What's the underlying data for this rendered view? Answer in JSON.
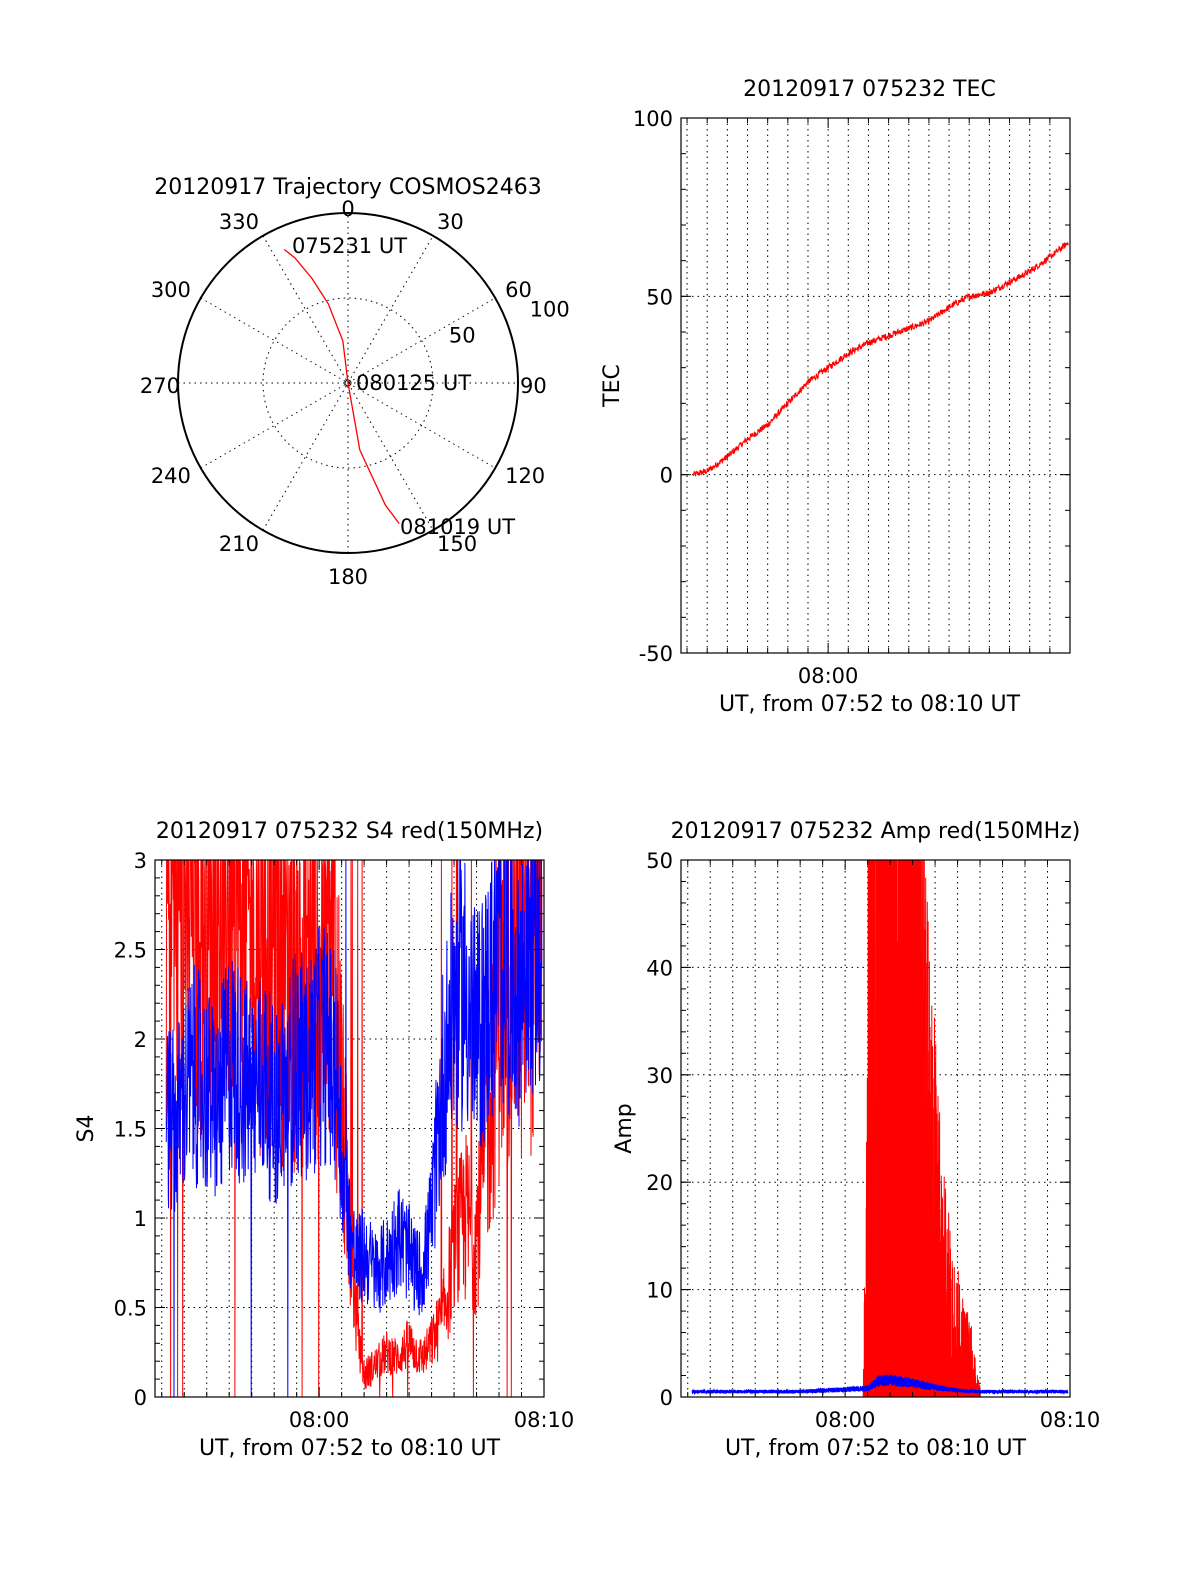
{
  "colors": {
    "red": "#ff0000",
    "blue": "#0000ff",
    "axis": "#000000"
  },
  "chart_data": [
    {
      "type": "polar",
      "title": "20120917 Trajectory COSMOS2463",
      "angle_labels": [
        "0",
        "30",
        "60",
        "90",
        "120",
        "150",
        "180",
        "210",
        "240",
        "270",
        "300",
        "330"
      ],
      "radius_labels": [
        "50",
        "100"
      ],
      "radius_label_values": [
        50,
        100
      ],
      "angle_label_values": [
        0,
        30,
        60,
        90,
        120,
        150,
        180,
        210,
        240,
        270,
        300,
        330
      ],
      "radius_max": 100,
      "series": [
        {
          "color": "red",
          "points_azimuth_deg": [
            334.5,
            337,
            341,
            346,
            353,
            0,
            170,
            163,
            160
          ],
          "points_radius": [
            87,
            80,
            65,
            48,
            25,
            0,
            40,
            75,
            88
          ]
        }
      ],
      "annotations": [
        {
          "text": "075231 UT",
          "azimuth": 355,
          "radius": 82
        },
        {
          "text": "080125 UT",
          "azimuth": 90,
          "radius": 2
        },
        {
          "text": "081019 UT",
          "azimuth": 154,
          "radius": 95
        }
      ]
    },
    {
      "type": "line",
      "title": "20120917 075232 TEC",
      "xlabel": "UT, from 07:52 to 08:10 UT",
      "ylabel": "TEC",
      "xlim": [
        472.7,
        492
      ],
      "ylim": [
        -50,
        100
      ],
      "xticks": [
        480
      ],
      "xtick_labels": [
        "08:00"
      ],
      "yticks": [
        -50,
        0,
        50,
        100
      ],
      "ytick_labels": [
        "-50",
        "0",
        "50",
        "100"
      ],
      "series": [
        {
          "color": "red",
          "x": [
            473.3,
            474,
            475,
            476,
            477,
            478,
            479,
            480,
            481,
            482,
            483,
            484,
            485,
            486,
            487,
            488,
            489,
            490,
            491,
            491.9
          ],
          "y": [
            0,
            1,
            5,
            10,
            14,
            20,
            26,
            30,
            34,
            37,
            39,
            41,
            43,
            47,
            50,
            51,
            54,
            57,
            61,
            65
          ]
        }
      ]
    },
    {
      "type": "line",
      "title": "20120917 075232 S4 red(150MHz)",
      "xlabel": "UT, from 07:52 to 08:10 UT",
      "ylabel": "S4",
      "xlim": [
        472.7,
        490
      ],
      "ylim": [
        0,
        3
      ],
      "xticks": [
        480,
        490
      ],
      "xtick_labels": [
        "08:00",
        "08:10"
      ],
      "yticks": [
        0,
        0.5,
        1,
        1.5,
        2,
        2.5,
        3
      ],
      "ytick_labels": [
        "0",
        "0.5",
        "1",
        "1.5",
        "2",
        "2.5",
        "3"
      ],
      "series": [
        {
          "color": "red",
          "x": [
            473.2,
            473.6,
            474,
            474.5,
            475,
            475.5,
            476,
            476.5,
            477,
            477.5,
            478,
            478.5,
            479,
            479.4,
            479.8,
            480.2,
            480.5,
            480.8,
            481.1,
            481.4,
            481.7,
            482,
            482.5,
            483,
            483.5,
            484,
            484.3,
            484.6,
            485,
            485.5,
            486,
            486.5,
            487,
            487.5,
            488,
            488.5,
            489,
            489.5,
            489.9
          ],
          "y": [
            2.8,
            2.9,
            2.9,
            2.8,
            2.7,
            2.8,
            2.9,
            2.7,
            2.6,
            2.7,
            2.6,
            2.5,
            2.4,
            2.5,
            2.5,
            2.6,
            2.5,
            2.2,
            1.4,
            0.9,
            0.35,
            0.12,
            0.18,
            0.25,
            0.22,
            0.3,
            0.25,
            0.22,
            0.3,
            0.45,
            0.8,
            1.0,
            0.9,
            1.6,
            2.3,
            2.5,
            2.5,
            2.7,
            2.9
          ]
        },
        {
          "color": "blue",
          "x": [
            473.2,
            473.6,
            474,
            474.5,
            475,
            475.5,
            476,
            476.5,
            477,
            477.5,
            478,
            478.5,
            479,
            479.4,
            479.8,
            480.2,
            480.5,
            480.8,
            481.1,
            481.4,
            481.7,
            482,
            482.5,
            483,
            483.5,
            484,
            484.3,
            484.6,
            485,
            485.5,
            486,
            486.5,
            487,
            487.5,
            488,
            488.5,
            489,
            489.5,
            489.9
          ],
          "y": [
            1.6,
            1.5,
            1.7,
            1.8,
            1.7,
            1.6,
            1.9,
            1.8,
            1.7,
            1.8,
            1.6,
            1.7,
            1.9,
            1.8,
            1.9,
            2.0,
            1.9,
            1.8,
            1.2,
            0.9,
            0.75,
            0.8,
            0.7,
            0.75,
            0.9,
            0.8,
            0.7,
            0.7,
            1.0,
            1.8,
            2.2,
            2.3,
            2.0,
            2.2,
            2.5,
            2.4,
            2.3,
            2.6,
            2.4
          ]
        }
      ]
    },
    {
      "type": "line",
      "title": "20120917 075232 Amp red(150MHz)",
      "xlabel": "UT, from 07:52 to 08:10 UT",
      "ylabel": "Amp",
      "xlim": [
        472.7,
        490
      ],
      "ylim": [
        0,
        50
      ],
      "xticks": [
        480,
        490
      ],
      "xtick_labels": [
        "08:00",
        "08:10"
      ],
      "yticks": [
        0,
        10,
        20,
        30,
        40,
        50
      ],
      "ytick_labels": [
        "0",
        "10",
        "20",
        "30",
        "40",
        "50"
      ],
      "series": [
        {
          "color": "red",
          "x": [
            480.8,
            481.0,
            481.2,
            481.4,
            481.6,
            481.8,
            482.0,
            482.2,
            482.4,
            482.6,
            482.8,
            483.0,
            483.3,
            483.6,
            484.0,
            484.4,
            484.8,
            485.2,
            485.6,
            486.0
          ],
          "y": [
            0,
            5,
            38,
            30,
            22,
            18,
            30,
            27,
            22,
            17,
            14,
            12,
            9,
            7,
            5,
            3,
            2,
            1.5,
            1,
            0
          ]
        },
        {
          "color": "blue",
          "x": [
            473.2,
            474,
            475,
            476,
            477,
            478,
            479,
            480,
            481,
            481.5,
            482,
            483,
            484,
            485,
            486,
            487,
            488,
            489,
            489.9
          ],
          "y": [
            0.5,
            0.5,
            0.5,
            0.5,
            0.5,
            0.5,
            0.6,
            0.7,
            0.8,
            1.5,
            1.6,
            1.3,
            0.9,
            0.6,
            0.5,
            0.5,
            0.5,
            0.5,
            0.5
          ]
        }
      ]
    }
  ]
}
